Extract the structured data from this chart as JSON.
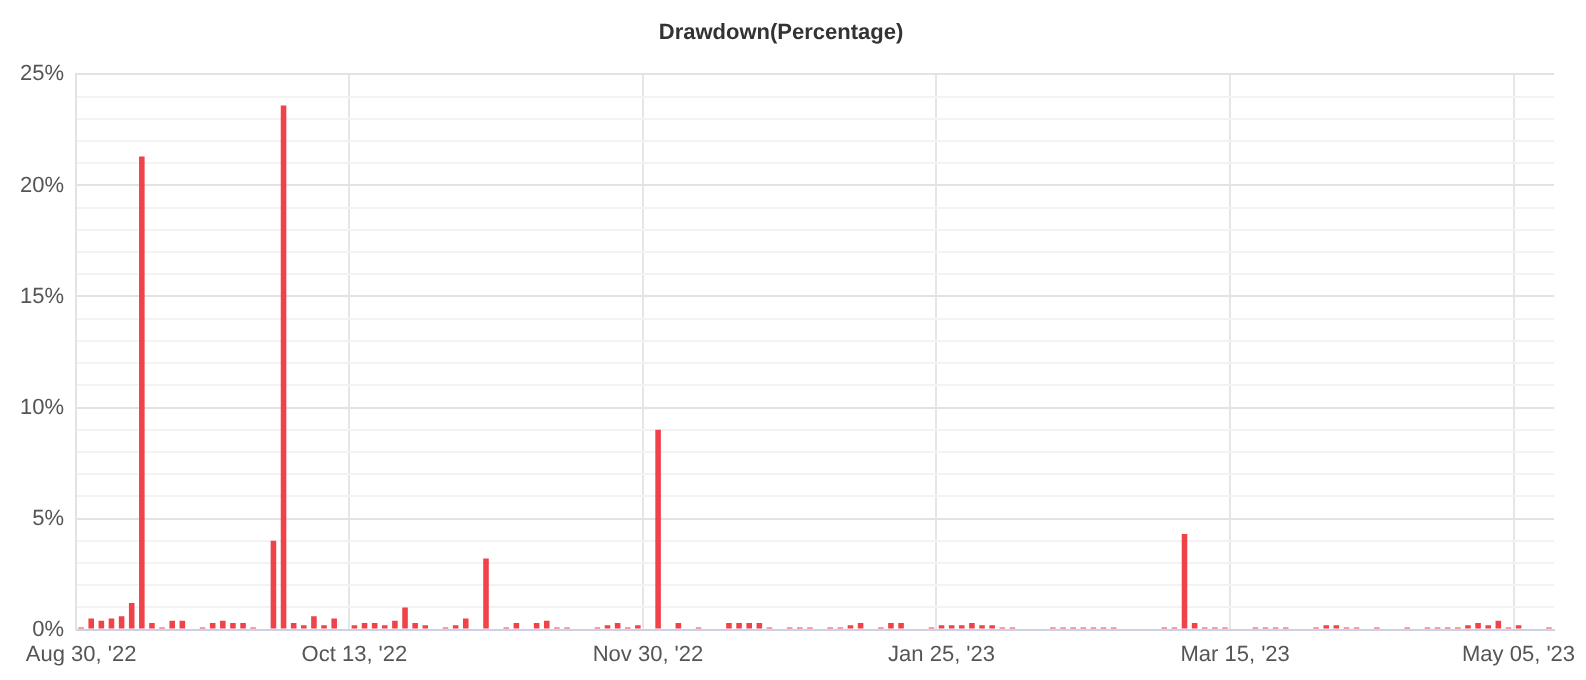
{
  "chart_data": {
    "type": "bar",
    "title": "Drawdown(Percentage)",
    "categories": [
      "Aug 30, '22",
      null,
      null,
      null,
      null,
      null,
      null,
      null,
      null,
      null,
      null,
      null,
      null,
      null,
      null,
      null,
      null,
      null,
      null,
      null,
      null,
      null,
      null,
      null,
      null,
      null,
      null,
      "Oct 13, '22",
      null,
      null,
      null,
      null,
      null,
      null,
      null,
      null,
      null,
      null,
      null,
      null,
      null,
      null,
      null,
      null,
      null,
      null,
      null,
      null,
      null,
      null,
      null,
      null,
      null,
      null,
      null,
      null,
      "Nov 30, '22",
      null,
      null,
      null,
      null,
      null,
      null,
      null,
      null,
      null,
      null,
      null,
      null,
      null,
      null,
      null,
      null,
      null,
      null,
      null,
      null,
      null,
      null,
      null,
      null,
      null,
      null,
      null,
      null,
      "Jan 25, '23",
      null,
      null,
      null,
      null,
      null,
      null,
      null,
      null,
      null,
      null,
      null,
      null,
      null,
      null,
      null,
      null,
      null,
      null,
      null,
      null,
      null,
      null,
      null,
      null,
      null,
      null,
      null,
      null,
      "Mar 15, '23",
      null,
      null,
      null,
      null,
      null,
      null,
      null,
      null,
      null,
      null,
      null,
      null,
      null,
      null,
      null,
      null,
      null,
      null,
      null,
      null,
      null,
      null,
      null,
      null,
      null,
      null,
      null,
      "May 05, '23",
      null,
      null,
      null
    ],
    "values": [
      0.1,
      0.5,
      0.4,
      0.5,
      0.6,
      1.2,
      21.3,
      0.3,
      0.1,
      0.4,
      0.4,
      null,
      0.1,
      0.3,
      0.4,
      0.3,
      0.3,
      0.1,
      null,
      4.0,
      23.6,
      0.3,
      0.2,
      0.6,
      0.2,
      0.5,
      null,
      0.2,
      0.3,
      0.3,
      0.2,
      0.4,
      1.0,
      0.3,
      0.2,
      null,
      0.1,
      0.2,
      0.5,
      null,
      3.2,
      null,
      0.1,
      0.3,
      null,
      0.3,
      0.4,
      0.1,
      0.1,
      null,
      null,
      0.1,
      0.2,
      0.3,
      0.1,
      0.2,
      null,
      9.0,
      null,
      0.3,
      null,
      0.1,
      null,
      null,
      0.3,
      0.3,
      0.3,
      0.3,
      0.1,
      null,
      0.1,
      0.1,
      0.1,
      null,
      0.1,
      0.1,
      0.2,
      0.3,
      null,
      0.1,
      0.3,
      0.3,
      null,
      null,
      0.1,
      0.2,
      0.2,
      0.2,
      0.3,
      0.2,
      0.2,
      0.1,
      0.1,
      null,
      null,
      null,
      0.1,
      0.1,
      0.1,
      0.1,
      0.1,
      0.1,
      0.1,
      null,
      null,
      null,
      null,
      0.1,
      0.1,
      4.3,
      0.3,
      0.1,
      0.1,
      0.1,
      null,
      null,
      0.1,
      0.1,
      0.1,
      0.1,
      null,
      null,
      0.1,
      0.2,
      0.2,
      0.1,
      0.1,
      null,
      0.1,
      null,
      null,
      0.1,
      null,
      0.1,
      0.1,
      0.1,
      0.1,
      0.2,
      0.3,
      0.2,
      0.4,
      0.1,
      0.2,
      null,
      null,
      0.1
    ],
    "color": "#ef4349",
    "ylim": [
      0,
      25
    ],
    "yticks": [
      {
        "value": 0,
        "label": "0%"
      },
      {
        "value": 1,
        "label": null
      },
      {
        "value": 2,
        "label": null
      },
      {
        "value": 3,
        "label": null
      },
      {
        "value": 4,
        "label": null
      },
      {
        "value": 5,
        "label": "5%"
      },
      {
        "value": 6,
        "label": null
      },
      {
        "value": 7,
        "label": null
      },
      {
        "value": 8,
        "label": null
      },
      {
        "value": 9,
        "label": null
      },
      {
        "value": 10,
        "label": "10%"
      },
      {
        "value": 11,
        "label": null
      },
      {
        "value": 12,
        "label": null
      },
      {
        "value": 13,
        "label": null
      },
      {
        "value": 14,
        "label": null
      },
      {
        "value": 15,
        "label": "15%"
      },
      {
        "value": 16,
        "label": null
      },
      {
        "value": 17,
        "label": null
      },
      {
        "value": 18,
        "label": null
      },
      {
        "value": 19,
        "label": null
      },
      {
        "value": 20,
        "label": "20%"
      },
      {
        "value": 21,
        "label": null
      },
      {
        "value": 22,
        "label": null
      },
      {
        "value": 23,
        "label": null
      },
      {
        "value": 24,
        "label": null
      },
      {
        "value": 25,
        "label": "25%"
      }
    ],
    "grid": true
  }
}
